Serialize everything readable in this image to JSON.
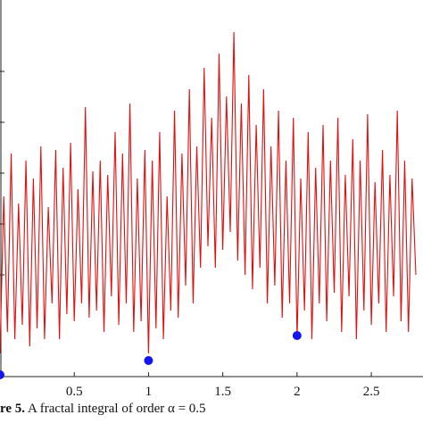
{
  "caption": {
    "label": "re 5.",
    "text": "A fractal integral of order α = 0.5"
  },
  "chart_data": {
    "type": "line",
    "title": "",
    "xlabel": "",
    "ylabel": "",
    "xlim": [
      0,
      2.8
    ],
    "ylim": [
      0,
      1
    ],
    "x_ticks": [
      0.5,
      1,
      1.5,
      2,
      2.5
    ],
    "x_tick_labels": [
      "0.5",
      "1",
      "1.5",
      "2",
      "2.5"
    ],
    "grid": false,
    "line_color": "#e01010",
    "marker_color": "#1515f0",
    "series": [
      {
        "x": [
          0.0,
          0.025,
          0.05,
          0.075,
          0.1,
          0.125,
          0.15,
          0.175,
          0.2,
          0.225,
          0.25,
          0.275,
          0.3,
          0.325,
          0.35,
          0.375,
          0.4,
          0.425,
          0.45,
          0.475,
          0.5,
          0.525,
          0.55,
          0.575,
          0.6,
          0.625,
          0.65,
          0.675,
          0.7,
          0.725,
          0.75,
          0.775,
          0.8,
          0.825,
          0.85,
          0.875,
          0.9,
          0.925,
          0.95,
          0.975,
          1.0,
          1.025,
          1.05,
          1.075,
          1.1,
          1.125,
          1.15,
          1.175,
          1.2,
          1.225,
          1.25,
          1.275,
          1.3,
          1.325,
          1.35,
          1.375,
          1.4,
          1.425,
          1.45,
          1.475,
          1.5,
          1.525,
          1.55,
          1.575,
          1.6,
          1.625,
          1.65,
          1.675,
          1.7,
          1.725,
          1.75,
          1.775,
          1.8,
          1.825,
          1.85,
          1.875,
          1.9,
          1.925,
          1.95,
          1.975,
          2.0,
          2.025,
          2.05,
          2.075,
          2.1,
          2.125,
          2.15,
          2.175,
          2.2,
          2.225,
          2.25,
          2.275,
          2.3,
          2.325,
          2.35,
          2.375,
          2.4,
          2.425,
          2.45,
          2.475,
          2.5,
          2.525,
          2.55,
          2.575,
          2.6,
          2.625,
          2.65,
          2.675,
          2.7,
          2.725,
          2.75,
          2.775,
          2.8
        ],
        "y": [
          0.06,
          0.5,
          0.12,
          0.62,
          0.1,
          0.48,
          0.14,
          0.6,
          0.08,
          0.55,
          0.13,
          0.64,
          0.1,
          0.47,
          0.2,
          0.63,
          0.1,
          0.58,
          0.17,
          0.65,
          0.15,
          0.52,
          0.2,
          0.75,
          0.16,
          0.57,
          0.18,
          0.6,
          0.12,
          0.56,
          0.22,
          0.68,
          0.14,
          0.62,
          0.2,
          0.76,
          0.12,
          0.55,
          0.15,
          0.63,
          0.06,
          0.6,
          0.13,
          0.68,
          0.1,
          0.5,
          0.18,
          0.74,
          0.16,
          0.62,
          0.25,
          0.8,
          0.2,
          0.64,
          0.3,
          0.86,
          0.36,
          0.72,
          0.3,
          0.9,
          0.35,
          0.78,
          0.4,
          0.96,
          0.32,
          0.76,
          0.28,
          0.84,
          0.24,
          0.7,
          0.3,
          0.8,
          0.2,
          0.64,
          0.25,
          0.74,
          0.16,
          0.6,
          0.2,
          0.72,
          0.1,
          0.55,
          0.18,
          0.68,
          0.1,
          0.58,
          0.2,
          0.7,
          0.15,
          0.6,
          0.23,
          0.72,
          0.12,
          0.56,
          0.22,
          0.66,
          0.1,
          0.6,
          0.18,
          0.73,
          0.14,
          0.54,
          0.2,
          0.63,
          0.12,
          0.56,
          0.22,
          0.74,
          0.15,
          0.6,
          0.12,
          0.55,
          0.28
        ]
      }
    ],
    "markers": [
      {
        "x": 0.0,
        "y": 0.0
      },
      {
        "x": 1.0,
        "y": 0.04
      },
      {
        "x": 2.0,
        "y": 0.11
      }
    ]
  }
}
